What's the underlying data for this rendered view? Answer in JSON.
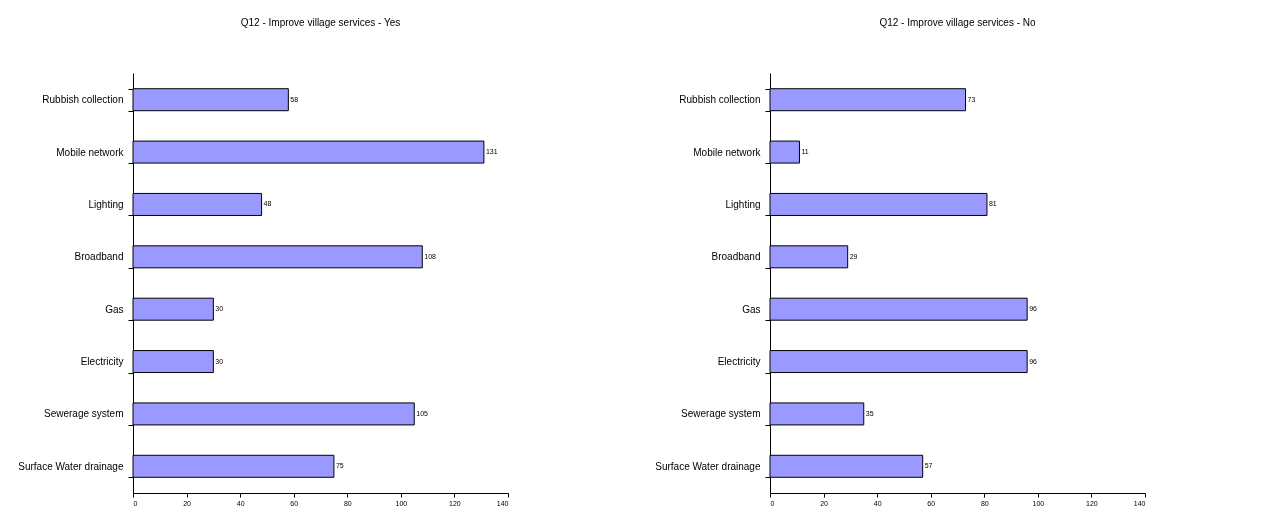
{
  "chart_data": [
    {
      "type": "bar",
      "orientation": "horizontal",
      "title": "Q12 - Improve village services - Yes",
      "categories": [
        "Rubbish collection",
        "Mobile network",
        "Lighting",
        "Broadband",
        "Gas",
        "Electricity",
        "Sewerage system",
        "Surface Water drainage"
      ],
      "values": [
        58,
        131,
        48,
        108,
        30,
        30,
        105,
        75
      ],
      "color": "#9999ff",
      "xlim": [
        0,
        140
      ],
      "xticks": [
        0,
        20,
        40,
        60,
        80,
        100,
        120,
        140
      ],
      "data_labels": true,
      "grid": false
    },
    {
      "type": "bar",
      "orientation": "horizontal",
      "title": "Q12 - Improve village services - No",
      "categories": [
        "Rubbish collection",
        "Mobile network",
        "Lighting",
        "Broadband",
        "Gas",
        "Electricity",
        "Sewerage system",
        "Surface Water drainage"
      ],
      "values": [
        73,
        11,
        81,
        29,
        96,
        96,
        35,
        57
      ],
      "color": "#9999ff",
      "xlim": [
        0,
        140
      ],
      "xticks": [
        0,
        20,
        40,
        60,
        80,
        100,
        120,
        140
      ],
      "data_labels": true,
      "grid": false
    }
  ]
}
